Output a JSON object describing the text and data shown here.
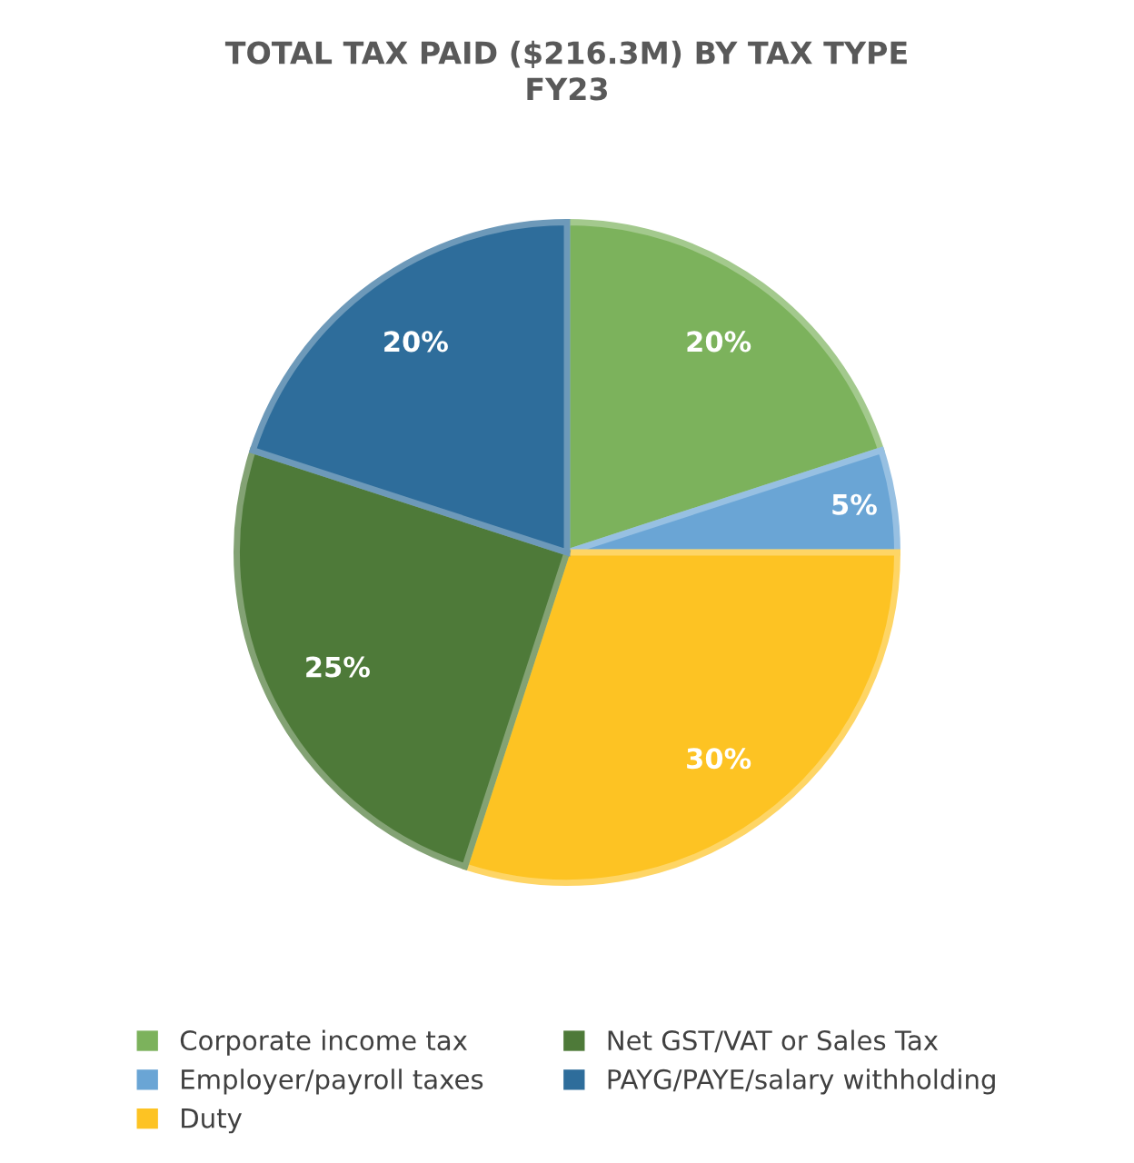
{
  "chart_data": {
    "type": "pie",
    "title": "TOTAL TAX PAID ($216.3M) BY TAX TYPE\nFY23",
    "categories": [
      "Corporate income tax",
      "Employer/payroll taxes",
      "Duty",
      "Net GST/VAT or Sales Tax",
      "PAYG/PAYE/salary withholding"
    ],
    "values": [
      20,
      5,
      30,
      25,
      20
    ],
    "value_labels": [
      "20%",
      "5%",
      "30%",
      "25%",
      "20%"
    ],
    "colors": [
      "#7cb25c",
      "#6aa5d5",
      "#fdc323",
      "#4e7a39",
      "#2e6d9b"
    ],
    "legend": "bottom"
  }
}
